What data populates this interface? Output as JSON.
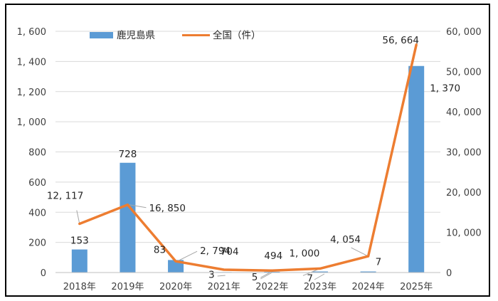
{
  "chart_data": {
    "type": "bar+line",
    "categories": [
      "2018年",
      "2019年",
      "2020年",
      "2021年",
      "2022年",
      "2023年",
      "2024年",
      "2025年"
    ],
    "series": [
      {
        "name": "鹿児島県",
        "type": "bar",
        "axis": "left",
        "color": "#5B9BD5",
        "values": [
          153,
          728,
          83,
          3,
          5,
          7,
          7,
          1370
        ],
        "labels": [
          "153",
          "728",
          "83",
          "3",
          "5",
          "7",
          "7",
          "1, 370"
        ]
      },
      {
        "name": "全国（件）",
        "type": "line",
        "axis": "right",
        "color": "#ED7D31",
        "values": [
          12117,
          16850,
          2794,
          704,
          494,
          1000,
          4054,
          56664
        ],
        "labels": [
          "12, 117",
          "16, 850",
          "2, 794",
          "704",
          "494",
          "1, 000",
          "4, 054",
          "56, 664"
        ]
      }
    ],
    "y_left": {
      "min": 0,
      "max": 1600,
      "ticks": [
        "0",
        "200",
        "400",
        "600",
        "800",
        "1, 000",
        "1, 200",
        "1, 400",
        "1, 600"
      ]
    },
    "y_right": {
      "min": 0,
      "max": 60000,
      "ticks": [
        "0",
        "10, 000",
        "20, 000",
        "30, 000",
        "40, 000",
        "50, 000",
        "60, 000"
      ]
    },
    "grid": true,
    "legend_position": "top-left"
  }
}
